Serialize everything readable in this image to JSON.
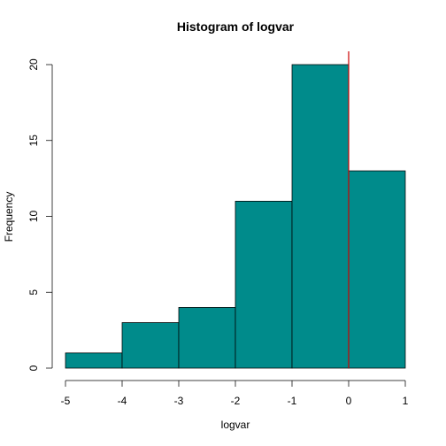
{
  "chart_data": {
    "type": "bar",
    "title": "Histogram of logvar",
    "xlabel": "logvar",
    "ylabel": "Frequency",
    "bins": [
      {
        "from": -5,
        "to": -4,
        "count": 1
      },
      {
        "from": -4,
        "to": -3,
        "count": 3
      },
      {
        "from": -3,
        "to": -2,
        "count": 4
      },
      {
        "from": -2,
        "to": -1,
        "count": 11
      },
      {
        "from": -1,
        "to": 0,
        "count": 20
      },
      {
        "from": 0,
        "to": 1,
        "count": 13
      }
    ],
    "x_ticks": [
      "-5",
      "-4",
      "-3",
      "-2",
      "-1",
      "0",
      "1"
    ],
    "y_ticks": [
      "0",
      "5",
      "10",
      "15",
      "20"
    ],
    "xlim": [
      -5,
      1
    ],
    "ylim": [
      0,
      20
    ],
    "vline": {
      "x": 0,
      "color": "#cc0000"
    },
    "bar_color": "#008b8b",
    "grid": false
  }
}
